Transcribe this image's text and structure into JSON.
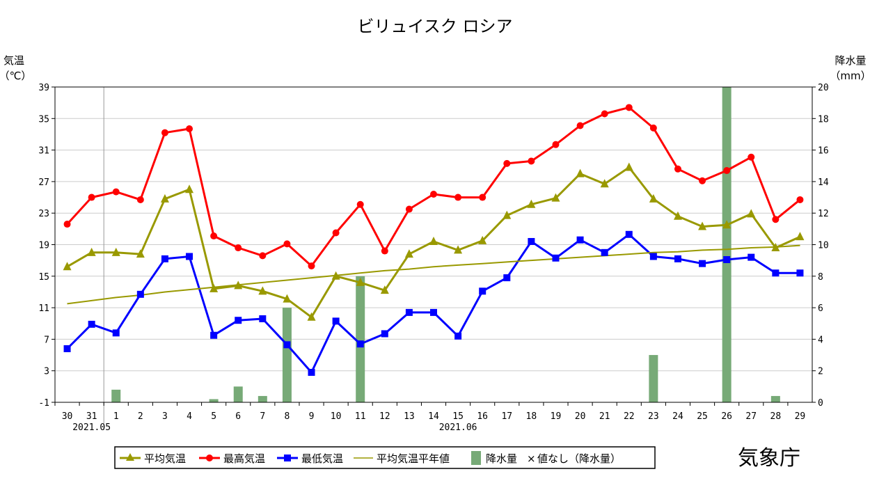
{
  "chart_data": {
    "type": "line",
    "title": "ビリュイスク ロシア",
    "y_left_label": [
      "気温",
      "（℃）"
    ],
    "y_right_label": [
      "降水量",
      "（mm）"
    ],
    "y_left_range": [
      -1,
      39
    ],
    "y_left_ticks": [
      "-1",
      "3",
      "7",
      "11",
      "15",
      "19",
      "23",
      "27",
      "31",
      "35",
      "39"
    ],
    "y_right_range": [
      0,
      20
    ],
    "y_right_ticks": [
      "0",
      "2",
      "4",
      "6",
      "8",
      "10",
      "12",
      "14",
      "16",
      "18",
      "20"
    ],
    "grid": true,
    "x": [
      "30",
      "31",
      "1",
      "2",
      "3",
      "4",
      "5",
      "6",
      "7",
      "8",
      "9",
      "10",
      "11",
      "12",
      "13",
      "14",
      "15",
      "16",
      "17",
      "18",
      "19",
      "20",
      "21",
      "22",
      "23",
      "24",
      "25",
      "26",
      "27",
      "28",
      "29"
    ],
    "month_labels": [
      {
        "label": "2021.05",
        "x_index": 1
      },
      {
        "label": "2021.06",
        "x_index": 16
      }
    ],
    "month_divider_index": 1.5,
    "series": [
      {
        "name": "平均気温",
        "color": "#999900",
        "marker": "triangle",
        "values": [
          16.2,
          18.0,
          18.0,
          17.8,
          24.8,
          26.0,
          13.4,
          13.8,
          13.1,
          12.1,
          9.8,
          15.0,
          14.2,
          13.2,
          17.8,
          19.4,
          18.3,
          19.5,
          22.7,
          24.1,
          24.9,
          28.0,
          26.7,
          28.8,
          24.8,
          22.6,
          21.3,
          21.5,
          22.9,
          18.6,
          20.0
        ]
      },
      {
        "name": "最高気温",
        "color": "#ff0000",
        "marker": "circle",
        "values": [
          21.6,
          25.0,
          25.7,
          24.7,
          33.2,
          33.7,
          20.1,
          18.6,
          17.6,
          19.1,
          16.3,
          20.5,
          24.1,
          18.2,
          23.5,
          25.4,
          25.0,
          25.0,
          29.3,
          29.6,
          31.7,
          34.1,
          35.6,
          36.4,
          33.8,
          28.6,
          27.1,
          28.4,
          30.1,
          22.2,
          24.7
        ]
      },
      {
        "name": "最低気温",
        "color": "#0000ff",
        "marker": "square",
        "values": [
          5.8,
          8.9,
          7.8,
          12.7,
          17.2,
          17.5,
          7.5,
          9.4,
          9.6,
          6.3,
          2.8,
          9.3,
          6.4,
          7.7,
          10.4,
          10.4,
          7.4,
          13.1,
          14.8,
          19.4,
          17.3,
          19.6,
          18.0,
          20.3,
          17.5,
          17.2,
          16.6,
          17.1,
          17.4,
          15.4,
          15.4
        ]
      },
      {
        "name": "平均気温平年値",
        "color": "#999900",
        "marker": "none",
        "values": [
          11.5,
          11.9,
          12.3,
          12.6,
          13.0,
          13.3,
          13.6,
          13.9,
          14.2,
          14.5,
          14.8,
          15.1,
          15.4,
          15.7,
          15.9,
          16.2,
          16.4,
          16.6,
          16.8,
          17.0,
          17.2,
          17.4,
          17.6,
          17.8,
          18.0,
          18.1,
          18.3,
          18.4,
          18.6,
          18.7,
          18.9
        ]
      }
    ],
    "precipitation": {
      "name": "降水量",
      "color": "#77aa77",
      "values": [
        0,
        0,
        0.8,
        0,
        0,
        0,
        0.2,
        1.0,
        0.4,
        6.0,
        0,
        0,
        8.0,
        0,
        0,
        0,
        0,
        0,
        0,
        0,
        0,
        0,
        0,
        0,
        3.0,
        0,
        0,
        20.0,
        0,
        0.4,
        0
      ]
    },
    "legend": {
      "placement": "bottom",
      "items": [
        "平均気温",
        "最高気温",
        "最低気温",
        "平均気温平年値",
        "降水量"
      ],
      "missing_mark": "×",
      "missing_text": "値なし（降水量）"
    }
  },
  "agency": "気象庁"
}
